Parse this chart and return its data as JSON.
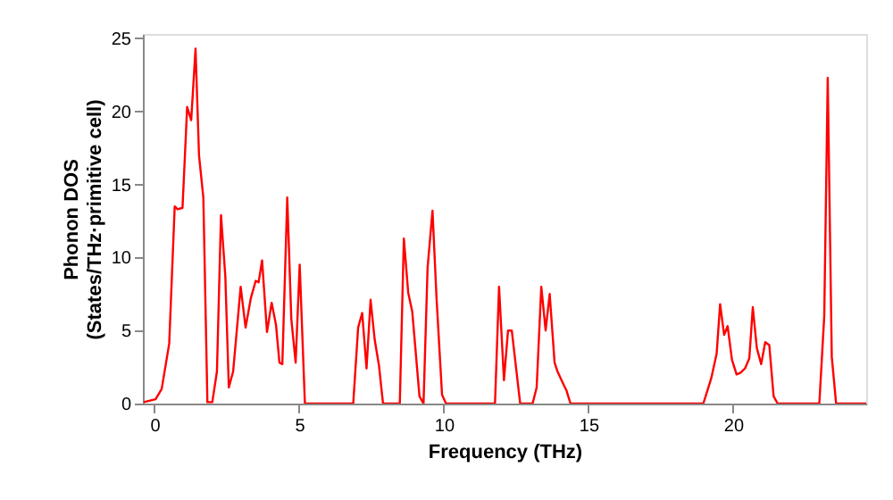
{
  "chart_data": {
    "type": "line",
    "xlabel": "Frequency (THz)",
    "ylabel": "Phonon DOS\n(States/THz·primitive cell)",
    "x": [
      -0.37,
      0.04,
      0.25,
      0.51,
      0.7,
      0.8,
      0.97,
      1.13,
      1.27,
      1.42,
      1.54,
      1.69,
      1.83,
      2.0,
      2.16,
      2.3,
      2.45,
      2.57,
      2.72,
      2.98,
      3.15,
      3.33,
      3.5,
      3.6,
      3.72,
      3.89,
      4.05,
      4.2,
      4.32,
      4.42,
      4.59,
      4.73,
      4.88,
      5.02,
      5.2,
      6.87,
      7.04,
      7.18,
      7.33,
      7.47,
      7.61,
      7.76,
      7.9,
      8.48,
      8.62,
      8.77,
      8.91,
      9.16,
      9.3,
      9.44,
      9.61,
      9.75,
      9.94,
      10.08,
      11.77,
      11.91,
      12.08,
      12.22,
      12.35,
      12.64,
      13.07,
      13.21,
      13.37,
      13.52,
      13.66,
      13.83,
      13.93,
      14.14,
      14.24,
      14.38,
      18.97,
      19.24,
      19.43,
      19.55,
      19.69,
      19.81,
      19.96,
      20.12,
      20.25,
      20.41,
      20.56,
      20.68,
      20.82,
      20.97,
      21.11,
      21.25,
      21.4,
      21.54,
      22.98,
      23.15,
      23.27,
      23.41,
      23.56,
      24.6
    ],
    "series": [
      {
        "color": "#ff0000",
        "values": [
          0.1,
          0.3,
          1.0,
          4.1,
          13.5,
          13.3,
          13.4,
          20.3,
          19.4,
          24.3,
          17.0,
          14.1,
          0.1,
          0.1,
          2.2,
          12.9,
          8.7,
          1.1,
          2.2,
          8.0,
          5.2,
          7.2,
          8.4,
          8.3,
          9.8,
          4.9,
          6.9,
          5.4,
          2.8,
          2.7,
          14.1,
          5.8,
          2.8,
          9.5,
          0,
          0,
          5.2,
          6.2,
          2.4,
          7.1,
          4.4,
          2.6,
          0,
          0,
          11.3,
          7.6,
          6.3,
          0.5,
          0,
          9.3,
          13.2,
          7.2,
          0.6,
          0,
          0,
          8.0,
          1.6,
          5.0,
          5.0,
          0,
          0,
          1.1,
          8.0,
          5.0,
          7.5,
          2.8,
          2.2,
          1.3,
          0.9,
          0,
          0,
          1.7,
          3.4,
          6.8,
          4.7,
          5.3,
          3.0,
          2.0,
          2.1,
          2.4,
          3.1,
          6.6,
          3.8,
          2.7,
          4.2,
          4.0,
          0.5,
          0,
          0,
          6.0,
          22.3,
          3.2,
          0,
          0
        ]
      }
    ],
    "xlim": [
      -0.4,
      24.6
    ],
    "ylim": [
      0,
      25.3
    ],
    "xticks": [
      0,
      5,
      10,
      15,
      20
    ],
    "yticks": [
      0,
      5,
      10,
      15,
      20,
      25
    ],
    "grid": false,
    "line_style": "solid",
    "marker": "none"
  }
}
